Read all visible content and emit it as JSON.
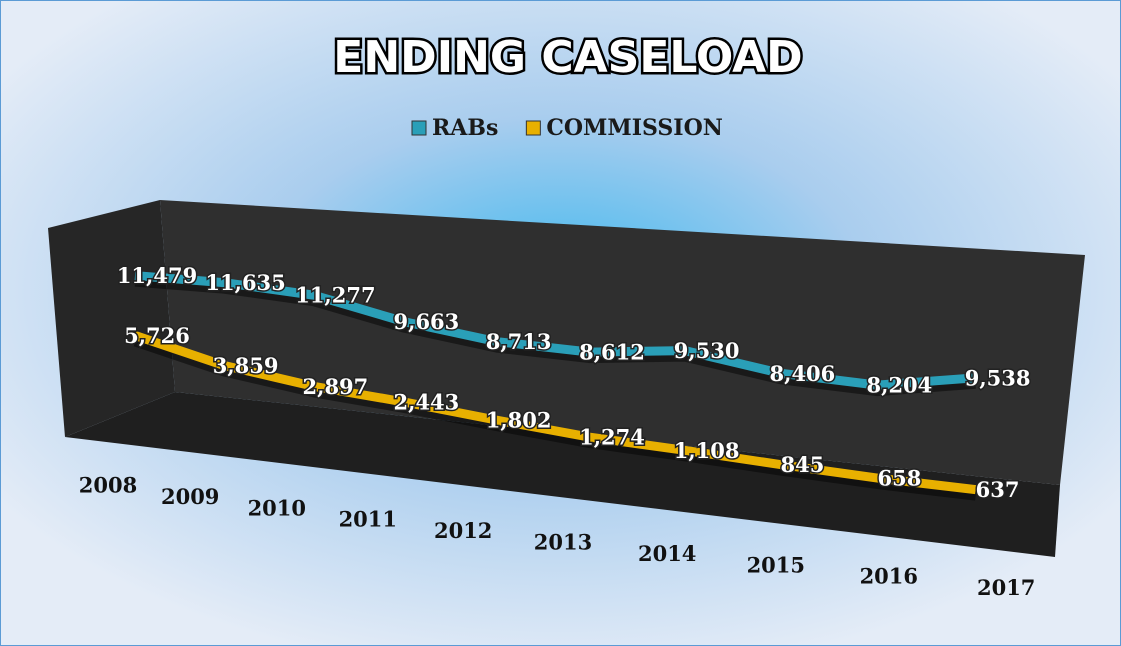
{
  "chart_data": {
    "type": "line3d",
    "title": "ENDING CASELOAD",
    "categories": [
      "2008",
      "2009",
      "2010",
      "2011",
      "2012",
      "2013",
      "2014",
      "2015",
      "2016",
      "2017"
    ],
    "series": [
      {
        "name": "RABs",
        "color": "#2a9fb8",
        "values": [
          11479,
          11635,
          11277,
          9663,
          8713,
          8612,
          9530,
          8406,
          8204,
          9538
        ],
        "value_labels": [
          "11,479",
          "11,635",
          "11,277",
          "9,663",
          "8,713",
          "8,612",
          "9,530",
          "8,406",
          "8,204",
          "9,538"
        ]
      },
      {
        "name": "COMMISSION",
        "color": "#e8b000",
        "values": [
          5726,
          3859,
          2897,
          2443,
          1802,
          1274,
          1108,
          845,
          658,
          637
        ],
        "value_labels": [
          "5,726",
          "3,859",
          "2,897",
          "2,443",
          "1,802",
          "1,274",
          "1,108",
          "845",
          "658",
          "637"
        ]
      }
    ],
    "legend": "top"
  }
}
